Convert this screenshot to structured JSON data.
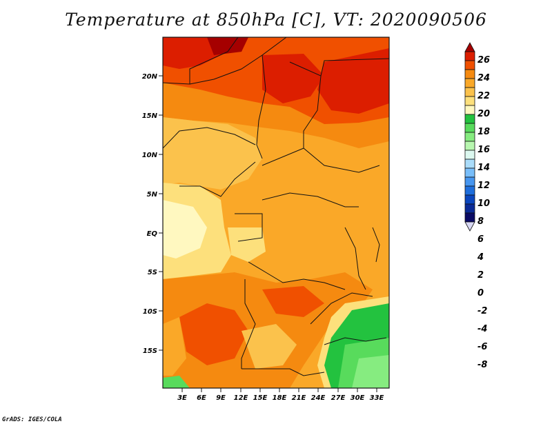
{
  "title": "Temperature at 850hPa [C], VT: 2020090506",
  "credit": "GrADS: IGES/COLA",
  "map": {
    "lat_ticks": [
      "20N",
      "15N",
      "10N",
      "5N",
      "EQ",
      "5S",
      "10S",
      "15S"
    ],
    "lon_ticks": [
      "3E",
      "6E",
      "9E",
      "12E",
      "15E",
      "18E",
      "21E",
      "24E",
      "27E",
      "30E",
      "33E"
    ]
  },
  "colorbar": {
    "labels": [
      "26",
      "24",
      "22",
      "20",
      "18",
      "16",
      "14",
      "12",
      "10",
      "8",
      "6",
      "4",
      "2",
      "0",
      "-2",
      "-4",
      "-6",
      "-8"
    ],
    "colors": [
      "#a50000",
      "#dc1e00",
      "#f05000",
      "#f58a10",
      "#faa828",
      "#fbc24c",
      "#fde07c",
      "#fff8c0",
      "#23c23f",
      "#58db5c",
      "#86ec80",
      "#b8f7b0",
      "#dcf8f0",
      "#aadcfa",
      "#78befa",
      "#4696f0",
      "#1e6edc",
      "#0a46be",
      "#0a2a96",
      "#0a0a64",
      "#d8d8f4"
    ]
  }
}
